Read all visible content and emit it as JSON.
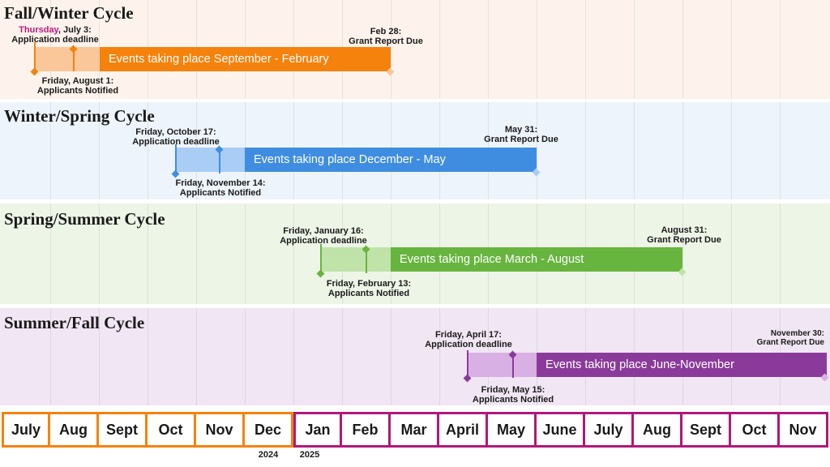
{
  "cycles": [
    {
      "title": "Fall/Winter Cycle",
      "band_color": "#fdf3ec",
      "main_color": "#f5820c",
      "light_color": "#f9c79a",
      "stem_color": "#f5820c",
      "main_text": "Events taking place September - February",
      "deadline": {
        "day": "Thursday",
        "rest": ", July 3:",
        "line2": "Application deadline"
      },
      "notified": {
        "line1": "Friday, August 1:",
        "line2": "Applicants Notified"
      },
      "report": {
        "line1": "Feb 28:",
        "line2": "Grant Report Due"
      }
    },
    {
      "title": "Winter/Spring Cycle",
      "band_color": "#eef4fb",
      "main_color": "#3f8de0",
      "light_color": "#a9cdf4",
      "stem_color": "#3f8de0",
      "main_text": "Events taking place December - May",
      "deadline": {
        "line1": "Friday, October 17:",
        "line2": "Application deadline"
      },
      "notified": {
        "line1": "Friday, November 14:",
        "line2": "Applicants Notified"
      },
      "report": {
        "line1": "May 31:",
        "line2": "Grant Report Due"
      }
    },
    {
      "title": "Spring/Summer Cycle",
      "band_color": "#edf5e7",
      "main_color": "#67b43e",
      "light_color": "#bfe3a8",
      "stem_color": "#67b43e",
      "main_text": "Events taking place March - August",
      "deadline": {
        "line1": "Friday, January 16:",
        "line2": "Application deadline"
      },
      "notified": {
        "line1": "Friday, February 13:",
        "line2": "Applicants Notified"
      },
      "report": {
        "line1": "August 31:",
        "line2": "Grant Report Due"
      }
    },
    {
      "title": "Summer/Fall Cycle",
      "band_color": "#f1e6f3",
      "main_color": "#8a3b9a",
      "light_color": "#d9b0e4",
      "stem_color": "#8a3b9a",
      "main_text": "Events taking place June-November",
      "deadline": {
        "line1": "Friday, April 17:",
        "line2": "Application deadline"
      },
      "notified": {
        "line1": "Friday, May 15:",
        "line2": "Applicants Notified"
      },
      "report": {
        "line1": "November 30:",
        "line2": "Grant Report Due"
      }
    }
  ],
  "months": [
    "July",
    "Aug",
    "Sept",
    "Oct",
    "Nov",
    "Dec",
    "Jan",
    "Feb",
    "Mar",
    "April",
    "May",
    "June",
    "July",
    "Aug",
    "Sept",
    "Oct",
    "Nov"
  ],
  "month_colors": {
    "year_2024": "#f5820c",
    "year_2025": "#b0187a"
  },
  "years": {
    "first": "2024",
    "second": "2025"
  }
}
